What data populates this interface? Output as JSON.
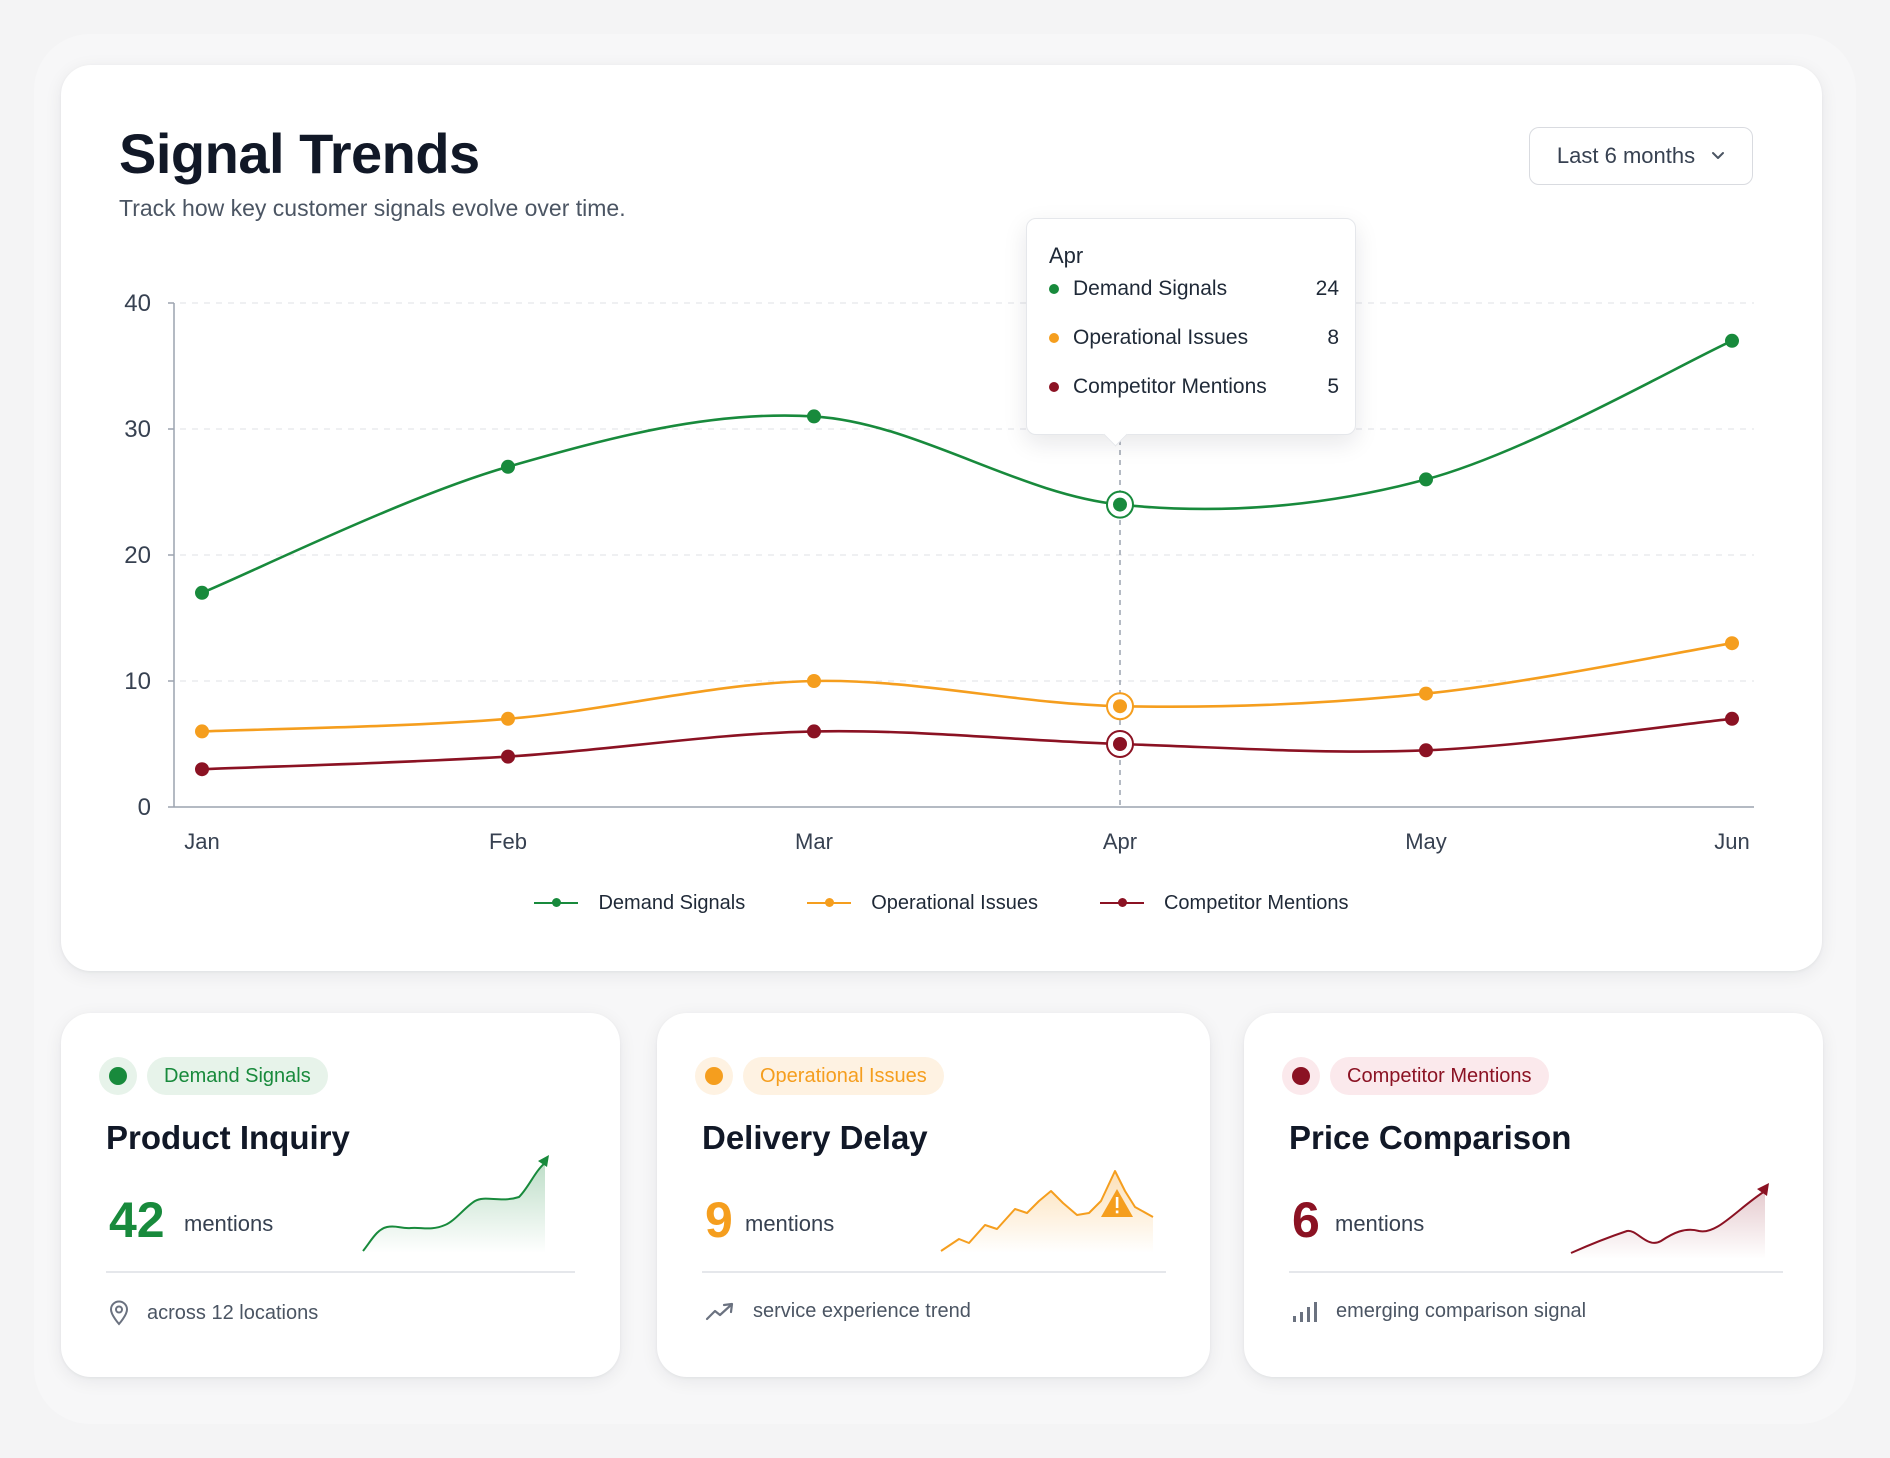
{
  "header": {
    "title": "Signal Trends",
    "subtitle": "Track how key customer signals evolve over time.",
    "range_select": {
      "value": "Last 6 months",
      "icon": "chevron-down-icon"
    }
  },
  "colors": {
    "demand": "#188a3c",
    "operational": "#f59e1e",
    "competitor": "#8b1223"
  },
  "chart_data": {
    "type": "line",
    "x": [
      "Jan",
      "Feb",
      "Mar",
      "Apr",
      "May",
      "Jun"
    ],
    "ylim": [
      0,
      40
    ],
    "yticks": [
      0,
      10,
      20,
      30,
      40
    ],
    "grid": true,
    "legend_position": "bottom-center",
    "series": [
      {
        "name": "Demand Signals",
        "values": [
          17,
          27,
          31,
          24,
          26,
          37
        ]
      },
      {
        "name": "Operational Issues",
        "values": [
          6,
          7,
          10,
          8,
          9,
          13
        ]
      },
      {
        "name": "Competitor Mentions",
        "values": [
          3,
          4,
          6,
          5,
          4.5,
          7
        ]
      }
    ],
    "highlight_index": 3
  },
  "tooltip": {
    "title": "Apr",
    "rows": [
      {
        "label": "Demand Signals",
        "value": "24"
      },
      {
        "label": "Operational Issues",
        "value": "8"
      },
      {
        "label": "Competitor Mentions",
        "value": "5"
      }
    ]
  },
  "legend": [
    "Demand Signals",
    "Operational Issues",
    "Competitor Mentions"
  ],
  "cards": [
    {
      "badge": "Demand Signals",
      "title": "Product Inquiry",
      "value": "42",
      "unit": "mentions",
      "footer": "across 12 locations",
      "footer_icon": "location-pin-icon",
      "sparkline_icon": "trend-up-arrow-icon"
    },
    {
      "badge": "Operational Issues",
      "title": "Delivery Delay",
      "value": "9",
      "unit": "mentions",
      "footer": "service experience trend",
      "footer_icon": "trend-up-icon",
      "sparkline_icon": "warning-icon"
    },
    {
      "badge": "Competitor Mentions",
      "title": "Price Comparison",
      "value": "6",
      "unit": "mentions",
      "footer": "emerging comparison signal",
      "footer_icon": "signal-bars-icon",
      "sparkline_icon": "trend-up-arrow-icon"
    }
  ]
}
